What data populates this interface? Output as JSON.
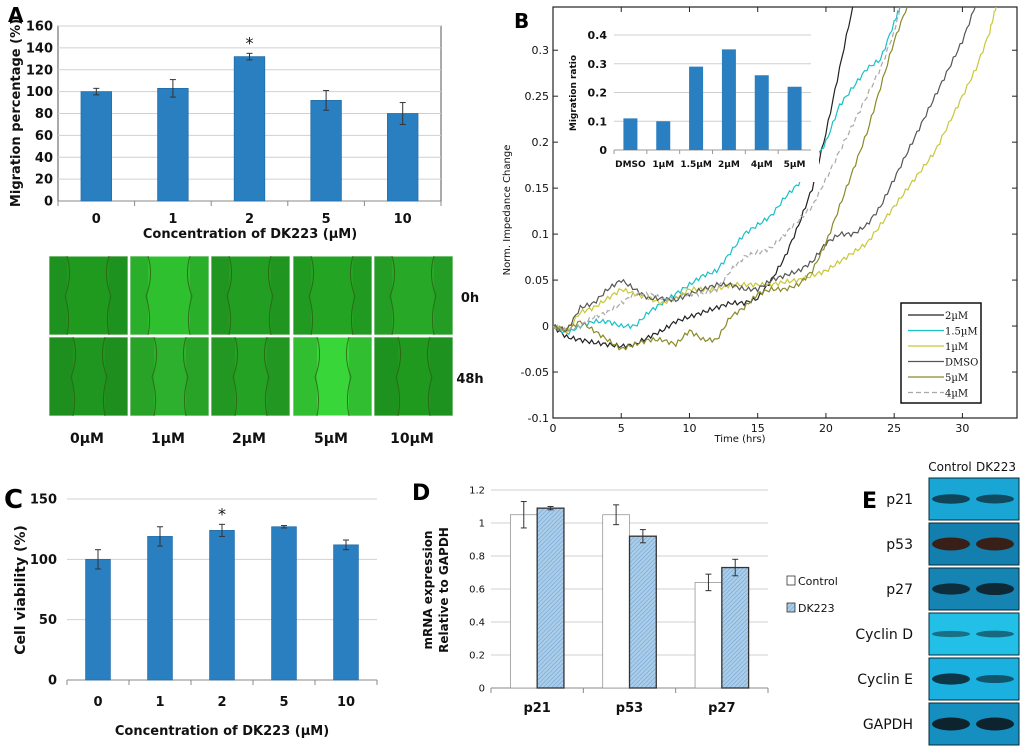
{
  "figure": {
    "panels": [
      "A",
      "B",
      "C",
      "D",
      "E"
    ]
  },
  "chart_data": [
    {
      "id": "A",
      "type": "bar",
      "title": "",
      "xlabel": "Concentration of DK223 (µM)",
      "ylabel": "Migration percentage (%)",
      "categories": [
        "0",
        "1",
        "2",
        "5",
        "10"
      ],
      "values": [
        100,
        103,
        132,
        92,
        80
      ],
      "errors": [
        3,
        8,
        3,
        9,
        10
      ],
      "significance": [
        "",
        "",
        "*",
        "",
        ""
      ],
      "ylim": [
        0,
        160
      ],
      "yticks": [
        0,
        20,
        40,
        60,
        80,
        100,
        120,
        140,
        160
      ],
      "grid": true,
      "color": "#2a7fc1"
    },
    {
      "id": "A-images",
      "type": "table",
      "rows": [
        "0h",
        "48h"
      ],
      "columns": [
        "0µM",
        "1µM",
        "2µM",
        "5µM",
        "10µM"
      ],
      "description": "Wound-healing fluorescence micrographs"
    },
    {
      "id": "B",
      "type": "line",
      "xlabel": "Time (hrs)",
      "ylabel": "Norm. Impedance Change",
      "xlim": [
        0,
        34
      ],
      "ylim": [
        -0.1,
        0.347
      ],
      "xticks": [
        0,
        5,
        10,
        15,
        20,
        25,
        30
      ],
      "yticks": [
        -0.1,
        -0.05,
        0,
        0.05,
        0.1,
        0.15,
        0.2,
        0.25,
        0.3
      ],
      "legend_position": "bottom-right",
      "series": [
        {
          "name": "2µM",
          "color": "#222222",
          "dash": false,
          "x": [
            0,
            1,
            2,
            3,
            4,
            5,
            6,
            7,
            8,
            9,
            10,
            11,
            12,
            13,
            14,
            15,
            16,
            17,
            18,
            19,
            20,
            21,
            22
          ],
          "y": [
            0,
            -0.012,
            -0.015,
            -0.018,
            -0.02,
            -0.022,
            -0.02,
            -0.012,
            -0.005,
            0.005,
            0.01,
            0.015,
            0.02,
            0.025,
            0.025,
            0.03,
            0.05,
            0.075,
            0.11,
            0.15,
            0.21,
            0.28,
            0.35
          ]
        },
        {
          "name": "1.5µM",
          "color": "#18c0c8",
          "dash": false,
          "x": [
            0,
            1,
            2,
            3,
            4,
            5,
            6,
            7,
            8,
            9,
            10,
            11,
            12,
            13,
            14,
            15,
            16,
            17,
            18,
            19,
            20,
            21,
            22,
            23,
            24,
            25,
            25.5
          ],
          "y": [
            0,
            -0.008,
            0.0,
            0.005,
            0.005,
            0.0,
            0.0,
            0.015,
            0.025,
            0.035,
            0.045,
            0.055,
            0.06,
            0.08,
            0.1,
            0.11,
            0.12,
            0.14,
            0.155,
            0.175,
            0.2,
            0.24,
            0.26,
            0.28,
            0.29,
            0.33,
            0.35
          ]
        },
        {
          "name": "1µM",
          "color": "#c8c83a",
          "dash": false,
          "x": [
            0,
            1,
            2,
            3,
            4,
            5,
            6,
            7,
            8,
            9,
            10,
            11,
            12,
            13,
            14,
            15,
            16,
            17,
            18,
            19,
            20,
            21,
            22,
            23,
            24,
            25,
            26,
            27,
            28,
            29,
            30,
            31,
            32,
            32.5
          ],
          "y": [
            0,
            -0.005,
            0.015,
            0.02,
            0.03,
            0.04,
            0.035,
            0.03,
            0.025,
            0.03,
            0.04,
            0.04,
            0.04,
            0.045,
            0.045,
            0.045,
            0.045,
            0.048,
            0.05,
            0.055,
            0.06,
            0.07,
            0.08,
            0.09,
            0.11,
            0.13,
            0.15,
            0.17,
            0.19,
            0.22,
            0.25,
            0.28,
            0.32,
            0.35
          ]
        },
        {
          "name": "DMSO",
          "color": "#555555",
          "dash": false,
          "x": [
            0,
            1,
            2,
            3,
            4,
            5,
            6,
            7,
            8,
            9,
            10,
            11,
            12,
            13,
            14,
            15,
            16,
            17,
            18,
            19,
            20,
            21,
            22,
            23,
            24,
            25,
            26,
            27,
            28,
            29,
            30,
            31
          ],
          "y": [
            0,
            -0.005,
            0.02,
            0.025,
            0.04,
            0.05,
            0.04,
            0.03,
            0.03,
            0.028,
            0.035,
            0.04,
            0.045,
            0.045,
            0.04,
            0.04,
            0.05,
            0.055,
            0.06,
            0.07,
            0.09,
            0.1,
            0.1,
            0.11,
            0.13,
            0.16,
            0.19,
            0.22,
            0.25,
            0.28,
            0.31,
            0.35
          ]
        },
        {
          "name": "5µM",
          "color": "#8a8a28",
          "dash": false,
          "x": [
            0,
            1,
            2,
            3,
            4,
            5,
            6,
            7,
            8,
            9,
            10,
            11,
            12,
            13,
            14,
            15,
            16,
            17,
            18,
            19,
            20,
            21,
            22,
            23,
            24,
            25,
            26
          ],
          "y": [
            0,
            -0.005,
            0.005,
            -0.005,
            -0.015,
            -0.025,
            -0.02,
            -0.015,
            -0.015,
            -0.02,
            -0.005,
            -0.015,
            -0.015,
            0.01,
            0.02,
            0.035,
            0.04,
            0.04,
            0.045,
            0.06,
            0.09,
            0.13,
            0.17,
            0.21,
            0.26,
            0.31,
            0.35
          ]
        },
        {
          "name": "4µM",
          "color": "#a8a8a8",
          "dash": true,
          "x": [
            0,
            1,
            2,
            3,
            4,
            5,
            6,
            7,
            8,
            9,
            10,
            11,
            12,
            13,
            14,
            15,
            16,
            17,
            18,
            19,
            20,
            21,
            22,
            23,
            24,
            25,
            25.5
          ],
          "y": [
            0,
            -0.005,
            0.0,
            0.01,
            0.015,
            0.025,
            0.035,
            0.035,
            0.03,
            0.03,
            0.035,
            0.035,
            0.04,
            0.06,
            0.075,
            0.08,
            0.085,
            0.1,
            0.115,
            0.13,
            0.16,
            0.19,
            0.22,
            0.25,
            0.28,
            0.32,
            0.35
          ]
        }
      ]
    },
    {
      "id": "B-inset",
      "type": "bar",
      "ylabel": "Migration ratio",
      "categories": [
        "DMSO",
        "1µM",
        "1.5µM",
        "2µM",
        "4µM",
        "5µM"
      ],
      "values": [
        0.11,
        0.1,
        0.29,
        0.35,
        0.26,
        0.22
      ],
      "ylim": [
        0,
        0.4
      ],
      "yticks": [
        0,
        0.1,
        0.2,
        0.3,
        0.4
      ],
      "grid": true,
      "color": "#2a7fc1"
    },
    {
      "id": "C",
      "type": "bar",
      "xlabel": "Concentration of DK223 (µM)",
      "ylabel": "Cell viability (%)",
      "categories": [
        "0",
        "1",
        "2",
        "5",
        "10"
      ],
      "values": [
        100,
        119,
        124,
        127,
        112
      ],
      "errors": [
        8,
        8,
        5,
        1,
        4
      ],
      "significance": [
        "",
        "",
        "*",
        "",
        ""
      ],
      "ylim": [
        0,
        150
      ],
      "yticks": [
        0,
        50,
        100,
        150
      ],
      "grid": true,
      "color": "#2a7fc1"
    },
    {
      "id": "D",
      "type": "bar",
      "ylabel": "mRNA expression Relative to GAPDH",
      "ylabel_lines": [
        "mRNA expression",
        "Relative to GAPDH"
      ],
      "categories": [
        "p21",
        "p53",
        "p27"
      ],
      "ylim": [
        0,
        1.2
      ],
      "yticks": [
        0,
        0.2,
        0.4,
        0.6,
        0.8,
        1,
        1.2
      ],
      "grid": true,
      "legend_position": "right",
      "series": [
        {
          "name": "Control",
          "values": [
            1.05,
            1.05,
            0.64
          ],
          "errors": [
            0.08,
            0.06,
            0.05
          ],
          "color": "#ffffff"
        },
        {
          "name": "DK223",
          "values": [
            1.09,
            0.92,
            0.73
          ],
          "errors": [
            0.01,
            0.04,
            0.05
          ],
          "color": "#9cc3e6"
        }
      ]
    },
    {
      "id": "E",
      "type": "table",
      "description": "Western blot",
      "columns": [
        "Control",
        "DK223"
      ],
      "rows": [
        "p21",
        "p53",
        "p27",
        "Cyclin D",
        "Cyclin E",
        "GAPDH"
      ],
      "band_intensity": [
        [
          0.6,
          0.55
        ],
        [
          1.0,
          1.0
        ],
        [
          0.8,
          0.9
        ],
        [
          0.25,
          0.3
        ],
        [
          0.8,
          0.45
        ],
        [
          1.0,
          1.0
        ]
      ],
      "membrane_colors": [
        "#1aa6d4",
        "#137fae",
        "#1684b3",
        "#22c0e6",
        "#1ab0e0",
        "#158fc0"
      ]
    }
  ],
  "labels": {
    "time_rows": [
      "0h",
      "48h"
    ],
    "asterisk": "*"
  }
}
